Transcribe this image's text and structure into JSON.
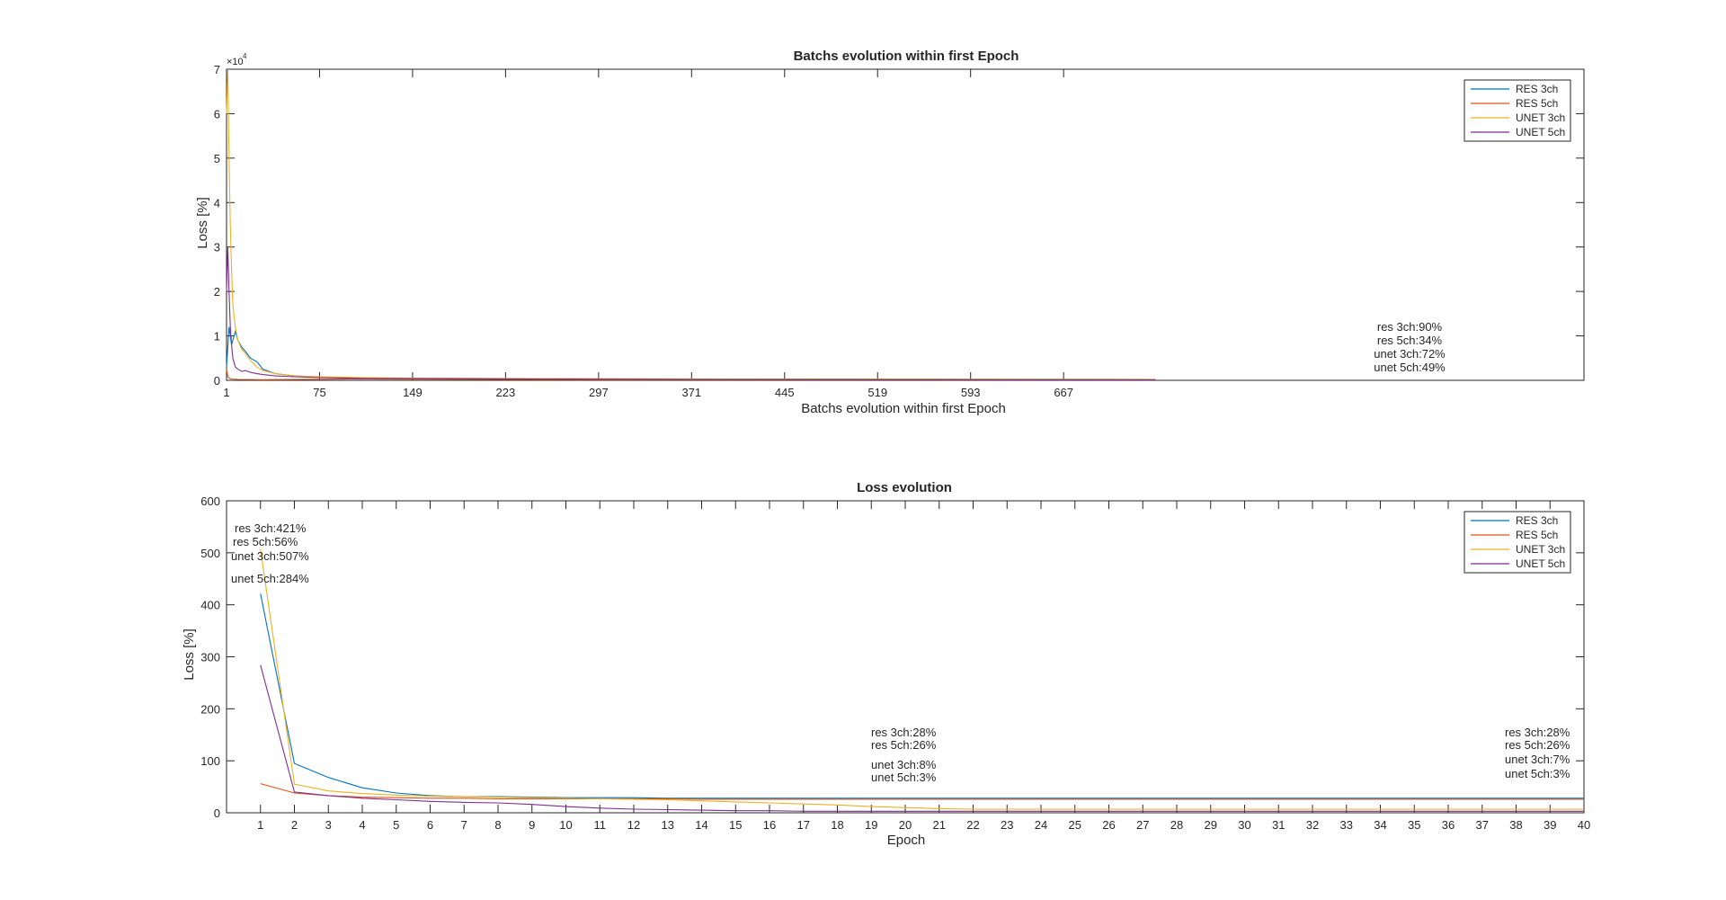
{
  "colors": {
    "res_3ch": "#0072BD",
    "res_5ch": "#D95319",
    "unet_3ch": "#EDB120",
    "unet_5ch": "#7E2F8E",
    "axes": "#262626",
    "background": "#ffffff"
  },
  "chart_data": [
    {
      "type": "line",
      "title": "Batchs evolution within first Epoch",
      "xlabel": "Batchs evolution within first Epoch",
      "ylabel": "Loss [%]",
      "y_exponent_label": "×10",
      "y_exponent_power": "4",
      "xlim": [
        1,
        1081
      ],
      "ylim": [
        0,
        70000
      ],
      "x_ticks": [
        1,
        75,
        149,
        223,
        297,
        371,
        445,
        519,
        593,
        667
      ],
      "x_tick_labels": [
        "1",
        "75",
        "149",
        "223",
        "297",
        "371",
        "445",
        "519",
        "593",
        "667"
      ],
      "y_ticks": [
        0,
        10000,
        20000,
        30000,
        40000,
        50000,
        60000,
        70000
      ],
      "y_tick_labels": [
        "0",
        "1",
        "2",
        "3",
        "4",
        "5",
        "6",
        "7"
      ],
      "grid": false,
      "legend_position": "top-right",
      "series": [
        {
          "name": "RES 3ch",
          "color": "#0072BD",
          "x": [
            1,
            3,
            5,
            8,
            10,
            13,
            16,
            20,
            25,
            30,
            40,
            55,
            75,
            110,
            150,
            250,
            400,
            600,
            740
          ],
          "y": [
            3000,
            12000,
            8000,
            11000,
            9000,
            7500,
            6500,
            5000,
            4200,
            2500,
            1500,
            1000,
            700,
            500,
            400,
            300,
            250,
            200,
            150
          ]
        },
        {
          "name": "RES 5ch",
          "color": "#D95319",
          "x": [
            1,
            2,
            3,
            5,
            10,
            30,
            100,
            300,
            740
          ],
          "y": [
            2500,
            800,
            500,
            300,
            200,
            150,
            300,
            150,
            120
          ]
        },
        {
          "name": "UNET 3ch",
          "color": "#EDB120",
          "x": [
            1,
            2,
            3,
            4,
            5,
            6,
            8,
            10,
            13,
            16,
            20,
            25,
            30,
            40,
            55,
            75,
            110,
            150,
            250,
            400,
            740
          ],
          "y": [
            60000,
            70000,
            50000,
            35000,
            25000,
            17000,
            12000,
            9000,
            7000,
            6000,
            4500,
            3000,
            2200,
            1500,
            1000,
            800,
            600,
            500,
            400,
            300,
            200
          ]
        },
        {
          "name": "UNET 5ch",
          "color": "#7E2F8E",
          "x": [
            1,
            2,
            3,
            4,
            5,
            6,
            8,
            10,
            13,
            16,
            20,
            25,
            30,
            40,
            55,
            75,
            110,
            150,
            250,
            400,
            740
          ],
          "y": [
            20000,
            30000,
            20000,
            12000,
            8000,
            5000,
            3000,
            2500,
            2000,
            2200,
            1800,
            1500,
            1300,
            1000,
            800,
            600,
            450,
            400,
            300,
            200,
            150
          ]
        }
      ],
      "annotations": [
        "res 3ch:90%",
        "res 5ch:34%",
        "unet 3ch:72%",
        "unet 5ch:49%"
      ]
    },
    {
      "type": "line",
      "title": "Loss evolution",
      "xlabel": "Epoch",
      "ylabel": "Loss [%]",
      "xlim": [
        0,
        40
      ],
      "ylim": [
        0,
        600
      ],
      "x_ticks": [
        1,
        2,
        3,
        4,
        5,
        6,
        7,
        8,
        9,
        10,
        11,
        12,
        13,
        14,
        15,
        16,
        17,
        18,
        19,
        20,
        21,
        22,
        23,
        24,
        25,
        26,
        27,
        28,
        29,
        30,
        31,
        32,
        33,
        34,
        35,
        36,
        37,
        38,
        39,
        40
      ],
      "x_tick_labels": [
        "1",
        "2",
        "3",
        "4",
        "5",
        "6",
        "7",
        "8",
        "9",
        "10",
        "11",
        "12",
        "13",
        "14",
        "15",
        "16",
        "17",
        "18",
        "19",
        "20",
        "21",
        "22",
        "23",
        "24",
        "25",
        "26",
        "27",
        "28",
        "29",
        "30",
        "31",
        "32",
        "33",
        "34",
        "35",
        "36",
        "37",
        "38",
        "39",
        "40"
      ],
      "y_ticks": [
        0,
        100,
        200,
        300,
        400,
        500,
        600
      ],
      "y_tick_labels": [
        "0",
        "100",
        "200",
        "300",
        "400",
        "500",
        "600"
      ],
      "grid": false,
      "legend_position": "top-right",
      "series": [
        {
          "name": "RES 3ch",
          "color": "#0072BD",
          "x": [
            1,
            2,
            3,
            4,
            5,
            6,
            7,
            8,
            9,
            10,
            11,
            12,
            13,
            14,
            15,
            16,
            17,
            18,
            19,
            20,
            21,
            22,
            23,
            24,
            25,
            26,
            27,
            28,
            29,
            30,
            31,
            32,
            33,
            34,
            35,
            36,
            37,
            38,
            39,
            40
          ],
          "y": [
            421,
            95,
            68,
            48,
            38,
            33,
            31,
            31,
            30,
            29,
            29,
            29,
            28,
            28,
            28,
            28,
            28,
            28,
            28,
            28,
            28,
            28,
            28,
            28,
            28,
            28,
            28,
            28,
            28,
            28,
            28,
            28,
            28,
            28,
            28,
            28,
            28,
            28,
            28,
            28
          ]
        },
        {
          "name": "RES 5ch",
          "color": "#D95319",
          "x": [
            1,
            2,
            3,
            4,
            5,
            6,
            7,
            8,
            9,
            10,
            11,
            12,
            13,
            14,
            15,
            16,
            17,
            18,
            19,
            20,
            21,
            22,
            23,
            24,
            25,
            26,
            27,
            28,
            29,
            30,
            31,
            32,
            33,
            34,
            35,
            36,
            37,
            38,
            39,
            40
          ],
          "y": [
            56,
            38,
            33,
            30,
            29,
            28,
            28,
            27,
            27,
            27,
            27,
            27,
            27,
            26,
            26,
            26,
            26,
            26,
            26,
            26,
            26,
            26,
            26,
            26,
            26,
            26,
            26,
            26,
            26,
            26,
            26,
            26,
            26,
            26,
            26,
            26,
            26,
            26,
            26,
            26
          ]
        },
        {
          "name": "UNET 3ch",
          "color": "#EDB120",
          "x": [
            1,
            2,
            3,
            4,
            5,
            6,
            7,
            8,
            9,
            10,
            11,
            12,
            13,
            14,
            15,
            16,
            17,
            18,
            19,
            20,
            21,
            22,
            23,
            24,
            25,
            26,
            27,
            28,
            29,
            30,
            31,
            32,
            33,
            34,
            35,
            36,
            37,
            38,
            39,
            40
          ],
          "y": [
            507,
            55,
            42,
            37,
            34,
            32,
            31,
            30,
            29,
            28,
            27,
            26,
            25,
            23,
            21,
            19,
            17,
            15,
            12,
            10,
            8,
            7,
            7,
            7,
            7,
            7,
            7,
            7,
            7,
            7,
            7,
            7,
            7,
            7,
            7,
            7,
            7,
            7,
            7,
            7
          ]
        },
        {
          "name": "UNET 5ch",
          "color": "#7E2F8E",
          "x": [
            1,
            2,
            3,
            4,
            5,
            6,
            7,
            8,
            9,
            10,
            11,
            12,
            13,
            14,
            15,
            16,
            17,
            18,
            19,
            20,
            21,
            22,
            23,
            24,
            25,
            26,
            27,
            28,
            29,
            30,
            31,
            32,
            33,
            34,
            35,
            36,
            37,
            38,
            39,
            40
          ],
          "y": [
            284,
            40,
            33,
            28,
            25,
            22,
            20,
            19,
            16,
            12,
            9,
            7,
            6,
            5,
            4,
            4,
            3,
            3,
            3,
            3,
            3,
            3,
            3,
            3,
            3,
            3,
            3,
            3,
            3,
            3,
            3,
            3,
            3,
            3,
            3,
            3,
            3,
            3,
            3,
            3
          ]
        }
      ],
      "annotation_groups": [
        [
          "res 3ch:421%",
          "res 5ch:56%",
          "unet 3ch:507%",
          "unet 5ch:284%"
        ],
        [
          "res 3ch:28%",
          "res 5ch:26%",
          "unet 3ch:8%",
          "unet 5ch:3%"
        ],
        [
          "res 3ch:28%",
          "res 5ch:26%",
          "unet 3ch:7%",
          "unet 5ch:3%"
        ]
      ]
    }
  ]
}
